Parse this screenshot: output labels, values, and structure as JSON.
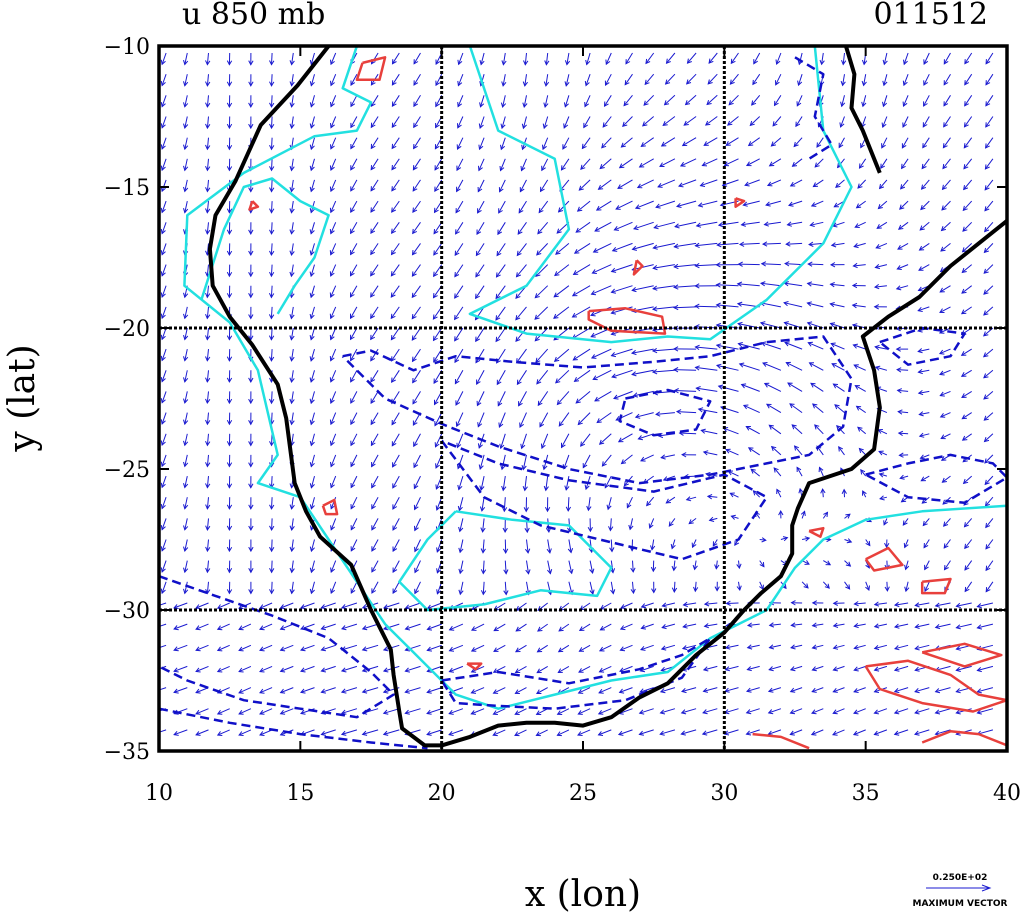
{
  "chart_data": {
    "type": "vector-contour-map",
    "title": "u 850 mb",
    "date_label": "011512",
    "xlabel": "x (lon)",
    "ylabel": "y (lat)",
    "xlim": [
      10,
      40
    ],
    "ylim": [
      -35,
      -10
    ],
    "x_ticks": [
      10,
      15,
      20,
      25,
      30,
      35,
      40
    ],
    "y_ticks": [
      -10,
      -15,
      -20,
      -25,
      -30,
      -35
    ],
    "x_tick_labels": [
      "10",
      "15",
      "20",
      "25",
      "30",
      "35",
      "40"
    ],
    "y_tick_labels": [
      "−10",
      "−15",
      "−20",
      "−25",
      "−30",
      "−35"
    ],
    "gridlines_x": [
      20,
      30
    ],
    "gridlines_y": [
      -20,
      -30
    ],
    "grid": true,
    "vector_key": {
      "value_label": "0.250E+02",
      "caption": "MAXIMUM VECTOR",
      "placement": "bottom-right"
    },
    "colors": {
      "coastline": "#000000",
      "positive_contour": "#e8403c",
      "negative_contour": "#1010c8",
      "zero_contour": "#22e0e0",
      "vectors": "#1a1ad0",
      "grid": "#000000"
    },
    "coastline": [
      [
        16.0,
        -10.0
      ],
      [
        14.9,
        -11.4
      ],
      [
        13.6,
        -12.8
      ],
      [
        12.7,
        -14.8
      ],
      [
        12.0,
        -16.0
      ],
      [
        11.8,
        -17.2
      ],
      [
        11.9,
        -18.5
      ],
      [
        12.5,
        -19.6
      ],
      [
        13.3,
        -20.6
      ],
      [
        14.2,
        -22.0
      ],
      [
        14.5,
        -23.2
      ],
      [
        14.8,
        -25.5
      ],
      [
        15.2,
        -26.5
      ],
      [
        15.7,
        -27.4
      ],
      [
        16.8,
        -28.4
      ],
      [
        17.5,
        -30.0
      ],
      [
        18.2,
        -31.4
      ],
      [
        18.3,
        -32.3
      ],
      [
        18.5,
        -33.6
      ],
      [
        18.6,
        -34.2
      ],
      [
        19.4,
        -34.8
      ],
      [
        20.0,
        -34.8
      ],
      [
        21.0,
        -34.5
      ],
      [
        22.0,
        -34.1
      ],
      [
        23.0,
        -34.0
      ],
      [
        24.0,
        -34.0
      ],
      [
        25.0,
        -34.1
      ],
      [
        26.0,
        -33.8
      ],
      [
        27.0,
        -33.1
      ],
      [
        28.0,
        -32.6
      ],
      [
        29.0,
        -31.6
      ],
      [
        30.0,
        -30.8
      ],
      [
        30.7,
        -30.0
      ],
      [
        31.3,
        -29.4
      ],
      [
        32.0,
        -28.8
      ],
      [
        32.4,
        -28.0
      ],
      [
        32.4,
        -27.0
      ],
      [
        32.6,
        -26.4
      ],
      [
        33.0,
        -25.5
      ],
      [
        34.5,
        -25.0
      ],
      [
        35.3,
        -24.3
      ],
      [
        35.5,
        -22.8
      ],
      [
        35.3,
        -21.5
      ],
      [
        34.9,
        -20.3
      ],
      [
        35.8,
        -19.6
      ],
      [
        36.9,
        -18.9
      ],
      [
        38.0,
        -17.8
      ],
      [
        39.5,
        -16.6
      ],
      [
        40.0,
        -16.2
      ]
    ],
    "coastline_lake": [
      [
        34.3,
        -10.0
      ],
      [
        34.6,
        -11.0
      ],
      [
        34.5,
        -12.2
      ],
      [
        34.9,
        -13.0
      ],
      [
        35.3,
        -14.0
      ],
      [
        35.5,
        -14.5
      ]
    ],
    "contours": [
      {
        "level": "zero",
        "points": [
          [
            17.0,
            -10.0
          ],
          [
            16.5,
            -11.5
          ],
          [
            17.5,
            -12.0
          ],
          [
            17.0,
            -13.0
          ],
          [
            15.5,
            -13.2
          ],
          [
            13.0,
            -14.5
          ],
          [
            11.0,
            -16.0
          ],
          [
            10.9,
            -18.5
          ],
          [
            12.5,
            -19.8
          ],
          [
            13.5,
            -21.5
          ],
          [
            14.2,
            -24.5
          ],
          [
            13.5,
            -25.5
          ],
          [
            15.0,
            -26.0
          ],
          [
            16.0,
            -27.5
          ],
          [
            17.0,
            -29.0
          ],
          [
            18.0,
            -30.5
          ],
          [
            19.0,
            -31.5
          ],
          [
            20.5,
            -33.0
          ],
          [
            22.0,
            -33.5
          ],
          [
            24.0,
            -33.0
          ],
          [
            26.0,
            -32.5
          ],
          [
            28.0,
            -32.2
          ],
          [
            29.5,
            -31.0
          ],
          [
            30.5,
            -30.5
          ],
          [
            31.5,
            -30.0
          ],
          [
            32.5,
            -28.5
          ],
          [
            33.5,
            -27.5
          ],
          [
            35.0,
            -26.8
          ],
          [
            37.0,
            -26.5
          ],
          [
            40.0,
            -26.3
          ]
        ]
      },
      {
        "level": "zero",
        "points": [
          [
            21.0,
            -10.0
          ],
          [
            22.0,
            -13.0
          ],
          [
            24.0,
            -14.0
          ],
          [
            24.5,
            -16.5
          ],
          [
            23.0,
            -18.5
          ],
          [
            21.0,
            -19.5
          ],
          [
            23.0,
            -20.2
          ],
          [
            26.0,
            -20.5
          ],
          [
            28.0,
            -20.3
          ],
          [
            29.5,
            -20.4
          ],
          [
            31.5,
            -19.0
          ],
          [
            33.5,
            -17.0
          ],
          [
            34.5,
            -15.0
          ],
          [
            33.5,
            -13.0
          ],
          [
            33.2,
            -10.0
          ]
        ]
      },
      {
        "level": "zero",
        "points": [
          [
            20.5,
            -26.5
          ],
          [
            22.5,
            -26.8
          ],
          [
            24.5,
            -27.0
          ],
          [
            26.0,
            -28.5
          ],
          [
            25.5,
            -29.5
          ],
          [
            23.5,
            -29.3
          ],
          [
            21.5,
            -29.8
          ],
          [
            19.5,
            -30.0
          ],
          [
            18.5,
            -29.0
          ],
          [
            19.5,
            -27.5
          ],
          [
            20.5,
            -26.5
          ]
        ]
      },
      {
        "level": "zero",
        "points": [
          [
            11.5,
            -19.0
          ],
          [
            12.3,
            -16.5
          ],
          [
            13.0,
            -15.0
          ],
          [
            14.0,
            -14.7
          ],
          [
            15.0,
            -15.5
          ],
          [
            16.0,
            -16.0
          ],
          [
            15.5,
            -17.5
          ],
          [
            14.8,
            -18.5
          ],
          [
            14.2,
            -19.5
          ]
        ]
      },
      {
        "level": "negative",
        "points": [
          [
            16.5,
            -21.0
          ],
          [
            17.5,
            -20.8
          ],
          [
            19.0,
            -21.5
          ],
          [
            20.5,
            -21.0
          ],
          [
            22.5,
            -21.2
          ],
          [
            25.0,
            -21.4
          ],
          [
            27.5,
            -21.2
          ],
          [
            29.5,
            -21.0
          ],
          [
            31.5,
            -20.5
          ],
          [
            33.5,
            -20.3
          ],
          [
            34.5,
            -21.8
          ],
          [
            34.2,
            -23.5
          ],
          [
            33.0,
            -24.5
          ],
          [
            31.5,
            -24.8
          ],
          [
            29.5,
            -25.2
          ],
          [
            27.0,
            -25.5
          ],
          [
            24.5,
            -25.0
          ],
          [
            22.0,
            -24.2
          ],
          [
            20.0,
            -23.4
          ],
          [
            18.0,
            -22.5
          ],
          [
            16.5,
            -21.0
          ]
        ]
      },
      {
        "level": "negative",
        "points": [
          [
            20.0,
            -24.0
          ],
          [
            21.5,
            -26.0
          ],
          [
            23.5,
            -27.0
          ],
          [
            26.0,
            -27.6
          ],
          [
            28.5,
            -28.2
          ],
          [
            30.5,
            -27.5
          ],
          [
            31.5,
            -26.0
          ],
          [
            30.0,
            -25.2
          ],
          [
            27.5,
            -25.8
          ],
          [
            24.5,
            -25.4
          ],
          [
            22.0,
            -24.8
          ],
          [
            20.0,
            -24.0
          ]
        ]
      },
      {
        "level": "negative",
        "points": [
          [
            26.5,
            -22.5
          ],
          [
            28.0,
            -22.2
          ],
          [
            29.5,
            -22.6
          ],
          [
            29.0,
            -23.6
          ],
          [
            27.5,
            -23.8
          ],
          [
            26.3,
            -23.3
          ],
          [
            26.5,
            -22.5
          ]
        ]
      },
      {
        "level": "negative",
        "points": [
          [
            10.0,
            -28.8
          ],
          [
            12.0,
            -29.5
          ],
          [
            14.0,
            -30.2
          ],
          [
            16.0,
            -31.0
          ],
          [
            17.5,
            -32.2
          ],
          [
            18.3,
            -33.0
          ],
          [
            17.0,
            -33.8
          ],
          [
            15.0,
            -33.5
          ],
          [
            13.0,
            -33.2
          ],
          [
            11.0,
            -32.5
          ],
          [
            10.0,
            -32.0
          ]
        ]
      },
      {
        "level": "negative",
        "points": [
          [
            10.0,
            -33.5
          ],
          [
            12.5,
            -34.0
          ],
          [
            15.0,
            -34.4
          ],
          [
            17.5,
            -34.7
          ],
          [
            19.5,
            -34.9
          ]
        ]
      },
      {
        "level": "negative",
        "points": [
          [
            20.0,
            -32.5
          ],
          [
            22.0,
            -32.2
          ],
          [
            24.5,
            -32.6
          ],
          [
            27.0,
            -32.1
          ],
          [
            28.5,
            -31.6
          ],
          [
            29.5,
            -31.0
          ],
          [
            28.5,
            -32.4
          ],
          [
            26.5,
            -33.2
          ],
          [
            24.0,
            -33.5
          ],
          [
            22.0,
            -33.4
          ],
          [
            20.5,
            -33.3
          ],
          [
            20.0,
            -32.5
          ]
        ]
      },
      {
        "level": "negative",
        "points": [
          [
            35.0,
            -25.2
          ],
          [
            36.5,
            -24.8
          ],
          [
            38.0,
            -24.5
          ],
          [
            39.5,
            -24.8
          ],
          [
            40.0,
            -25.3
          ],
          [
            38.5,
            -26.2
          ],
          [
            36.5,
            -26.0
          ],
          [
            35.0,
            -25.2
          ]
        ]
      },
      {
        "level": "negative",
        "points": [
          [
            35.5,
            -20.5
          ],
          [
            37.0,
            -20.0
          ],
          [
            38.5,
            -20.2
          ],
          [
            38.0,
            -21.0
          ],
          [
            36.5,
            -21.3
          ],
          [
            35.5,
            -20.5
          ]
        ]
      },
      {
        "level": "negative",
        "points": [
          [
            32.5,
            -10.4
          ],
          [
            33.5,
            -11.0
          ],
          [
            33.2,
            -12.5
          ],
          [
            33.8,
            -13.5
          ],
          [
            33.0,
            -14.0
          ]
        ]
      },
      {
        "level": "positive",
        "points": [
          [
            17.2,
            -10.6
          ],
          [
            18.0,
            -10.4
          ],
          [
            17.8,
            -11.2
          ],
          [
            17.0,
            -11.2
          ],
          [
            17.2,
            -10.6
          ]
        ]
      },
      {
        "level": "positive",
        "points": [
          [
            15.8,
            -26.3
          ],
          [
            16.2,
            -26.1
          ],
          [
            16.3,
            -26.6
          ],
          [
            15.9,
            -26.6
          ],
          [
            15.8,
            -26.3
          ]
        ]
      },
      {
        "level": "positive",
        "points": [
          [
            25.2,
            -19.4
          ],
          [
            26.5,
            -19.3
          ],
          [
            27.8,
            -19.6
          ],
          [
            27.9,
            -20.2
          ],
          [
            26.0,
            -20.1
          ],
          [
            25.2,
            -19.7
          ],
          [
            25.2,
            -19.4
          ]
        ]
      },
      {
        "level": "positive",
        "points": [
          [
            26.9,
            -17.6
          ],
          [
            27.1,
            -17.8
          ],
          [
            26.8,
            -18.1
          ],
          [
            26.9,
            -17.6
          ]
        ]
      },
      {
        "level": "positive",
        "points": [
          [
            20.9,
            -31.9
          ],
          [
            21.4,
            -31.9
          ],
          [
            21.2,
            -32.1
          ],
          [
            20.9,
            -31.9
          ]
        ]
      },
      {
        "level": "positive",
        "points": [
          [
            35.0,
            -28.2
          ],
          [
            35.8,
            -27.8
          ],
          [
            36.3,
            -28.4
          ],
          [
            35.3,
            -28.6
          ],
          [
            35.0,
            -28.2
          ]
        ]
      },
      {
        "level": "positive",
        "points": [
          [
            37.0,
            -29.0
          ],
          [
            38.0,
            -28.9
          ],
          [
            37.8,
            -29.4
          ],
          [
            37.0,
            -29.4
          ],
          [
            37.0,
            -29.0
          ]
        ]
      },
      {
        "level": "positive",
        "points": [
          [
            35.0,
            -32.0
          ],
          [
            36.5,
            -31.8
          ],
          [
            38.0,
            -32.3
          ],
          [
            39.0,
            -33.0
          ],
          [
            40.0,
            -33.2
          ],
          [
            38.8,
            -33.6
          ],
          [
            37.0,
            -33.3
          ],
          [
            35.5,
            -32.8
          ],
          [
            35.0,
            -32.0
          ]
        ]
      },
      {
        "level": "positive",
        "points": [
          [
            37.0,
            -31.5
          ],
          [
            38.5,
            -31.2
          ],
          [
            39.8,
            -31.6
          ],
          [
            38.5,
            -32.0
          ],
          [
            37.0,
            -31.5
          ]
        ]
      },
      {
        "level": "positive",
        "points": [
          [
            31.0,
            -34.4
          ],
          [
            32.0,
            -34.5
          ],
          [
            33.0,
            -34.9
          ]
        ]
      },
      {
        "level": "positive",
        "points": [
          [
            37.0,
            -34.7
          ],
          [
            38.0,
            -34.3
          ],
          [
            39.0,
            -34.4
          ],
          [
            40.0,
            -34.8
          ]
        ]
      },
      {
        "level": "positive",
        "points": [
          [
            33.0,
            -27.2
          ],
          [
            33.5,
            -27.1
          ],
          [
            33.4,
            -27.4
          ],
          [
            33.0,
            -27.2
          ]
        ]
      },
      {
        "level": "positive",
        "points": [
          [
            13.3,
            -15.5
          ],
          [
            13.5,
            -15.7
          ],
          [
            13.2,
            -15.8
          ],
          [
            13.3,
            -15.5
          ]
        ]
      },
      {
        "level": "positive",
        "points": [
          [
            30.4,
            -15.4
          ],
          [
            30.7,
            -15.5
          ],
          [
            30.4,
            -15.7
          ],
          [
            30.4,
            -15.4
          ]
        ]
      }
    ]
  }
}
